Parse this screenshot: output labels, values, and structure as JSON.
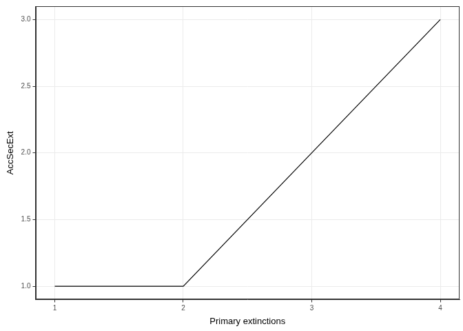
{
  "chart_data": {
    "type": "line",
    "x_label": "Primary extinctions",
    "y_label": "AccSecExt",
    "x": [
      1,
      2,
      3,
      4
    ],
    "values": [
      1,
      1,
      2,
      3
    ],
    "color": "#000000",
    "xlim": [
      0.85,
      4.15
    ],
    "ylim": [
      0.9,
      3.1
    ],
    "xticks": [
      1,
      2,
      3,
      4
    ],
    "yticks": [
      {
        "value": 1,
        "label": "1.0"
      },
      {
        "value": 1.5,
        "label": "1.5"
      },
      {
        "value": 2,
        "label": "2.0"
      },
      {
        "value": 2.5,
        "label": "2.5"
      },
      {
        "value": 3,
        "label": "3.0"
      }
    ],
    "grid": true
  }
}
